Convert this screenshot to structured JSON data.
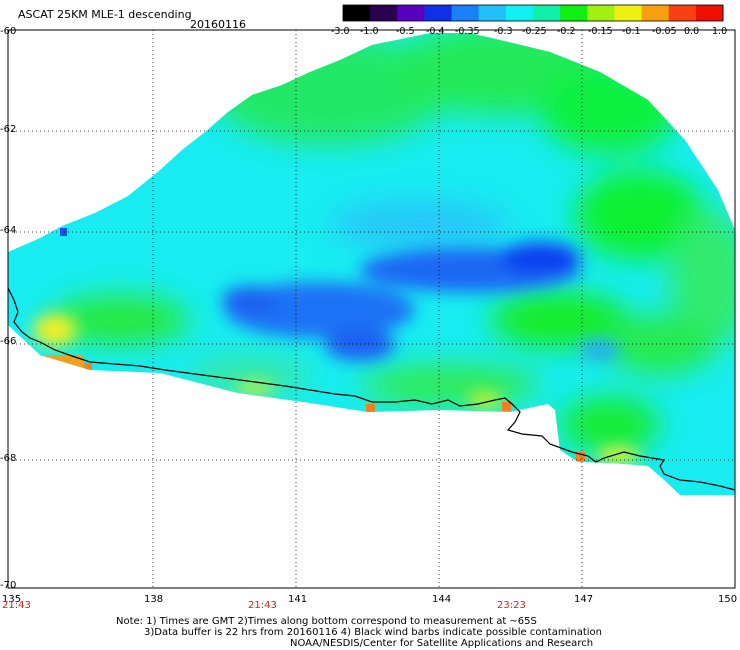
{
  "title": "ASCAT 25KM MLE-1 descending",
  "date": "20160116",
  "colorbar": {
    "ticks": [
      "-3.0",
      "-1.0",
      "-0.5",
      "-0.4",
      "-0.35",
      "-0.3",
      "-0.25",
      "-0.2",
      "-0.15",
      "-0.1",
      "-0.05",
      "0.0",
      "1.0"
    ],
    "colors": [
      "#000000",
      "#2a0050",
      "#5a00c0",
      "#1030e8",
      "#1880f8",
      "#20c0f8",
      "#10f0f0",
      "#10f0a8",
      "#10f010",
      "#a0f010",
      "#f0f010",
      "#f8a010",
      "#f84010",
      "#f01000"
    ]
  },
  "lat_labels": [
    "-60",
    "-62",
    "-64",
    "-66",
    "-68",
    "-70"
  ],
  "lon_labels": [
    "135",
    "138",
    "141",
    "144",
    "147",
    "150"
  ],
  "time_labels": [
    "21:43",
    "21:43",
    "23:23"
  ],
  "notes": [
    "Note: 1) Times are GMT 2)Times along bottom correspond to measurement at ~65S",
    "3)Data buffer is 22 hrs from 20160116 4) Black wind barbs indicate possible contamination",
    "NOAA/NESDIS/Center for Satellite Applications and Research"
  ]
}
